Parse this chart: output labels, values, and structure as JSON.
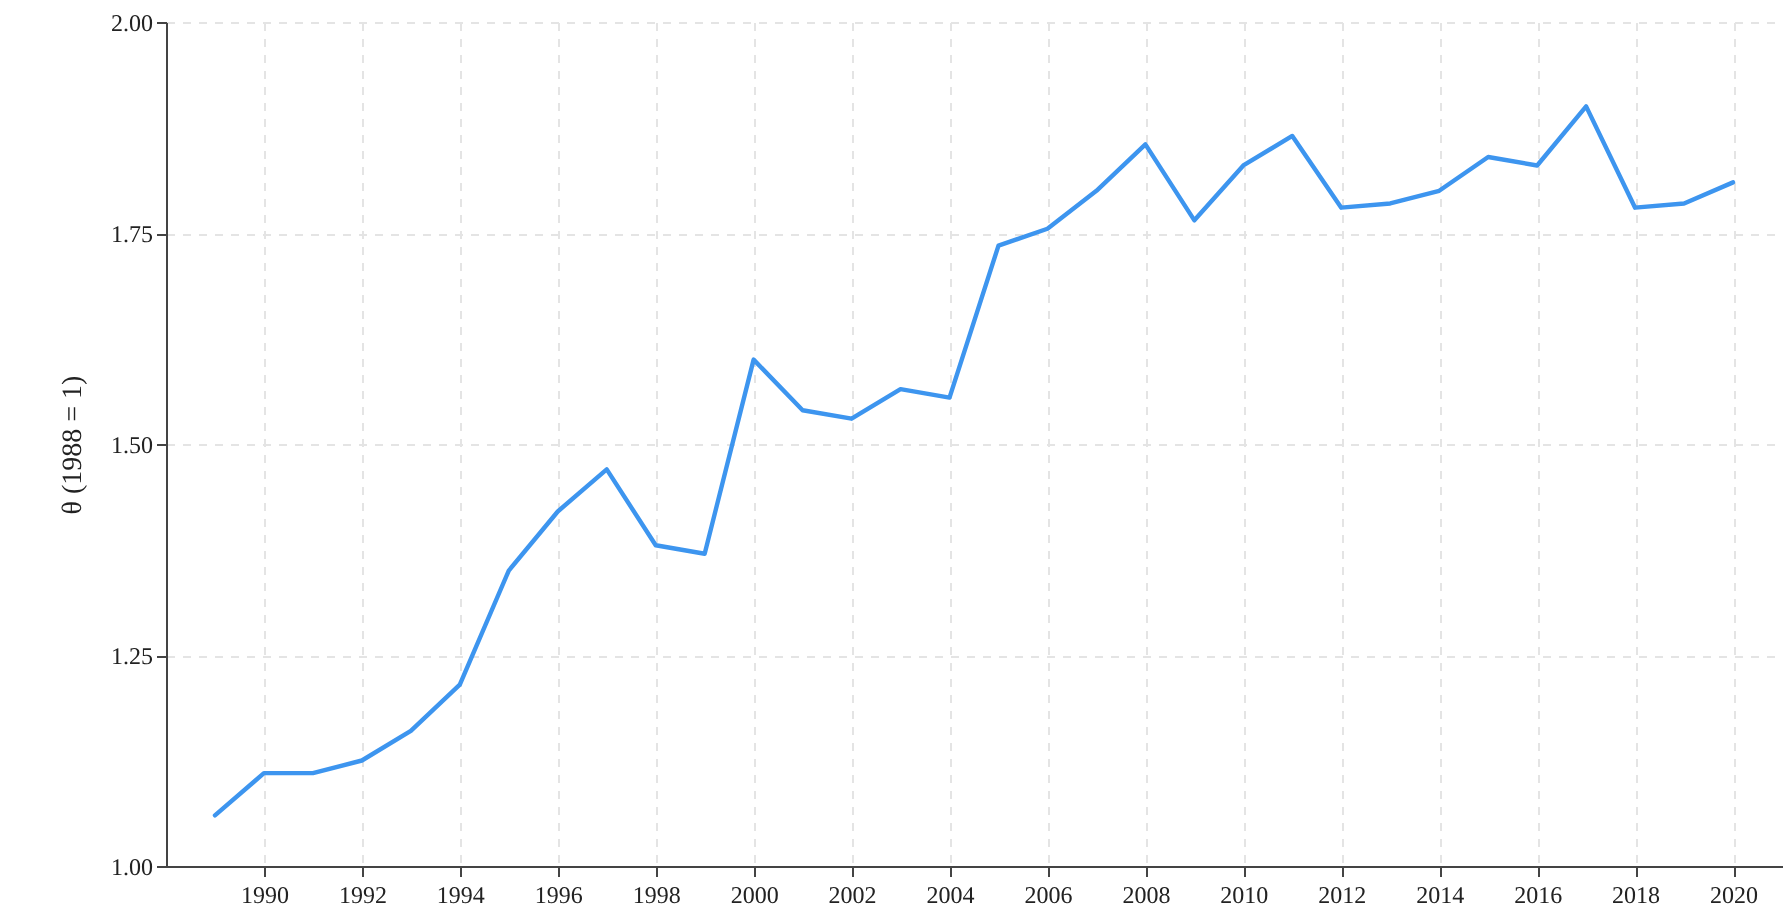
{
  "chart_data": {
    "type": "line",
    "ylabel": "θ (1988 = 1)",
    "x": [
      1989,
      1990,
      1991,
      1992,
      1993,
      1994,
      1995,
      1996,
      1997,
      1998,
      1999,
      2000,
      2001,
      2002,
      2003,
      2004,
      2005,
      2006,
      2007,
      2008,
      2009,
      2010,
      2011,
      2012,
      2013,
      2014,
      2015,
      2016,
      2017,
      2018,
      2019,
      2020
    ],
    "series": [
      {
        "color": "#3d95ef",
        "values": [
          1.06,
          1.11,
          1.11,
          1.125,
          1.16,
          1.215,
          1.35,
          1.42,
          1.47,
          1.38,
          1.37,
          1.6,
          1.54,
          1.53,
          1.565,
          1.555,
          1.735,
          1.755,
          1.8,
          1.855,
          1.765,
          1.83,
          1.865,
          1.78,
          1.785,
          1.8,
          1.84,
          1.83,
          1.9,
          1.78,
          1.785,
          1.81
        ]
      }
    ],
    "xlim": [
      1988,
      2021
    ],
    "xticks": [
      1990,
      1992,
      1994,
      1996,
      1998,
      2000,
      2002,
      2004,
      2006,
      2008,
      2010,
      2012,
      2014,
      2016,
      2018,
      2020
    ],
    "ylim": [
      1,
      2
    ],
    "yticks": [
      {
        "value": 1,
        "label": "1.00"
      },
      {
        "value": 1.25,
        "label": "1.25"
      },
      {
        "value": 1.5,
        "label": "1.50"
      },
      {
        "value": 1.75,
        "label": "1.75"
      },
      {
        "value": 2,
        "label": "2.00"
      }
    ],
    "grid": true,
    "line_style": "solid",
    "marker": "none"
  }
}
